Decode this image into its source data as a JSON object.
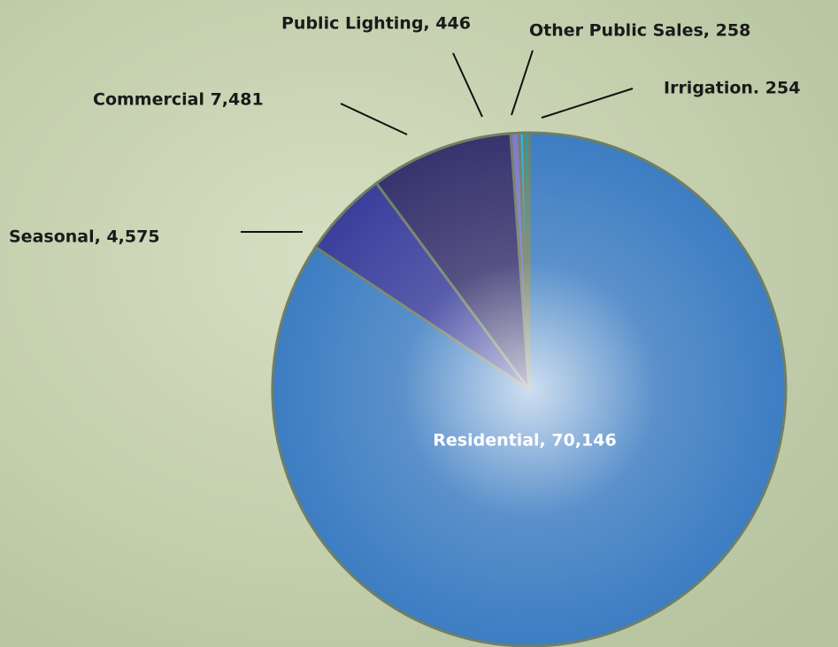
{
  "chart_data": {
    "type": "pie",
    "values": [
      70146,
      4575,
      7481,
      446,
      258,
      254
    ],
    "value_labels": [
      "Residential, 70,146",
      "Seasonal, 4,575",
      "Commercial 7,481",
      "Public Lighting, 446",
      "Other Public Sales, 258",
      "Irrigation. 254"
    ],
    "colors": [
      "#3d7dc2",
      "#3b3f9c",
      "#37336e",
      "#8078cc",
      "#2fb2e2",
      "#2a9d9b"
    ]
  }
}
